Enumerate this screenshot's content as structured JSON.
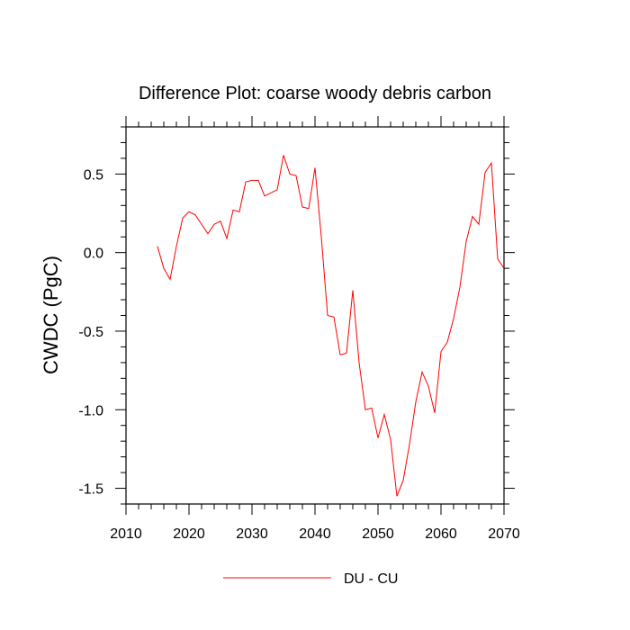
{
  "chart_data": {
    "type": "line",
    "title": "Difference Plot: coarse woody debris carbon",
    "xlabel": "",
    "ylabel": "CWDC  (PgC)",
    "xlim": [
      2010,
      2070
    ],
    "ylim": [
      -1.6,
      0.8
    ],
    "x_ticks": [
      2010,
      2020,
      2030,
      2040,
      2050,
      2060,
      2070
    ],
    "x_tick_labels": [
      "2010",
      "2020",
      "2030",
      "2040",
      "2050",
      "2060",
      "2070"
    ],
    "y_ticks": [
      -1.5,
      -1.0,
      -0.5,
      0.0,
      0.5
    ],
    "y_tick_labels": [
      "-1.5",
      "-1.0",
      "-0.5",
      "0.0",
      "0.5"
    ],
    "legend_position": "bottom-center",
    "series": [
      {
        "name": "DU - CU",
        "color": "#ff0000",
        "x": [
          2015,
          2016,
          2017,
          2018,
          2019,
          2020,
          2021,
          2022,
          2023,
          2024,
          2025,
          2026,
          2027,
          2028,
          2029,
          2030,
          2031,
          2032,
          2033,
          2034,
          2035,
          2036,
          2037,
          2038,
          2039,
          2040,
          2041,
          2042,
          2043,
          2044,
          2045,
          2046,
          2047,
          2048,
          2049,
          2050,
          2051,
          2052,
          2053,
          2054,
          2055,
          2056,
          2057,
          2058,
          2059,
          2060,
          2061,
          2062,
          2063,
          2064,
          2065,
          2066,
          2067,
          2068,
          2069,
          2070
        ],
        "y": [
          0.04,
          -0.1,
          -0.17,
          0.04,
          0.22,
          0.26,
          0.24,
          0.18,
          0.12,
          0.18,
          0.2,
          0.09,
          0.27,
          0.26,
          0.45,
          0.46,
          0.46,
          0.36,
          0.38,
          0.4,
          0.62,
          0.5,
          0.49,
          0.29,
          0.28,
          0.54,
          0.1,
          -0.4,
          -0.41,
          -0.65,
          -0.64,
          -0.24,
          -0.7,
          -1.0,
          -0.99,
          -1.18,
          -1.03,
          -1.19,
          -1.55,
          -1.45,
          -1.22,
          -0.95,
          -0.76,
          -0.85,
          -1.02,
          -0.63,
          -0.57,
          -0.42,
          -0.22,
          0.07,
          0.23,
          0.18,
          0.51,
          0.57,
          -0.04,
          -0.1
        ]
      }
    ]
  }
}
